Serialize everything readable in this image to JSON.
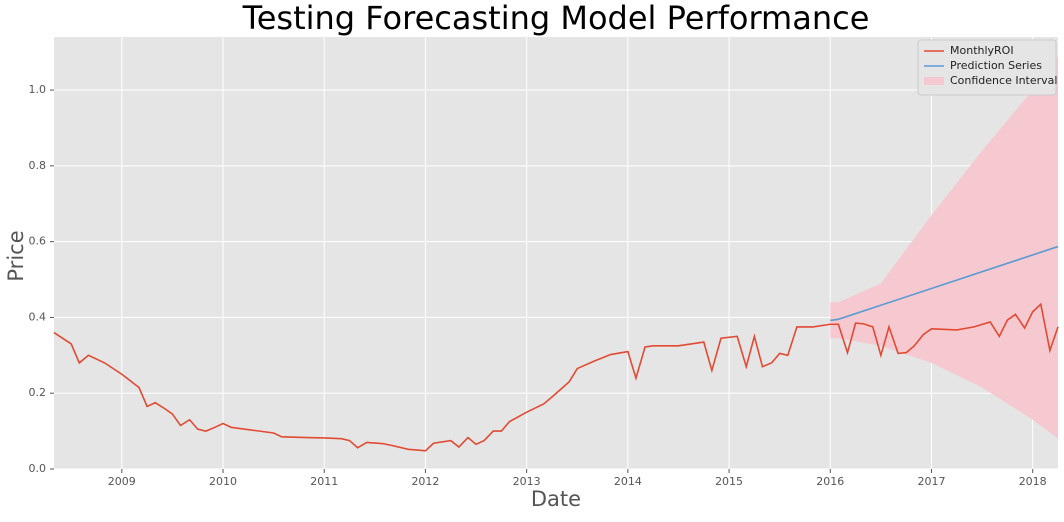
{
  "chart_data": {
    "type": "line",
    "title": "Testing Forecasting Model Performance",
    "x_label": "Date",
    "y_label": "Price",
    "xlim": [
      2008.33,
      2018.25
    ],
    "xticks": [
      2009,
      2010,
      2011,
      2012,
      2013,
      2014,
      2015,
      2016,
      2017,
      2018
    ],
    "ylim": [
      0,
      1.14
    ],
    "yticks": [
      {
        "value": 0,
        "label": "0.0"
      },
      0.2,
      0.4,
      0.6,
      0.8,
      {
        "value": 1,
        "label": "1.0"
      }
    ],
    "grid": true,
    "legend": "upper right",
    "series": [
      {
        "name": "MonthlyROI",
        "color": "#e24a33",
        "kind": "line",
        "x": [
          2008.33,
          2008.5,
          2008.58,
          2008.67,
          2008.83,
          2009.0,
          2009.17,
          2009.25,
          2009.33,
          2009.42,
          2009.5,
          2009.58,
          2009.67,
          2009.75,
          2009.83,
          2009.92,
          2010.0,
          2010.08,
          2010.5,
          2010.58,
          2010.83,
          2011.0,
          2011.17,
          2011.25,
          2011.33,
          2011.42,
          2011.58,
          2011.67,
          2011.83,
          2011.92,
          2012.0,
          2012.08,
          2012.25,
          2012.33,
          2012.42,
          2012.5,
          2012.58,
          2012.67,
          2012.75,
          2012.83,
          2013.0,
          2013.17,
          2013.25,
          2013.42,
          2013.5,
          2013.67,
          2013.83,
          2014.0,
          2014.08,
          2014.17,
          2014.25,
          2014.5,
          2014.75,
          2014.83,
          2014.92,
          2015.08,
          2015.17,
          2015.25,
          2015.33,
          2015.42,
          2015.5,
          2015.58,
          2015.67,
          2015.83,
          2016.0,
          2016.08,
          2016.17,
          2016.25,
          2016.33,
          2016.42,
          2016.5,
          2016.58,
          2016.67,
          2016.75,
          2016.83,
          2016.92,
          2017.0,
          2017.25,
          2017.42,
          2017.58,
          2017.67,
          2017.75,
          2017.83,
          2017.92,
          2018.0,
          2018.08,
          2018.17,
          2018.25
        ],
        "values": [
          0.36,
          0.33,
          0.28,
          0.3,
          0.28,
          0.25,
          0.215,
          0.165,
          0.175,
          0.16,
          0.145,
          0.115,
          0.13,
          0.105,
          0.1,
          0.11,
          0.12,
          0.11,
          0.095,
          0.085,
          0.083,
          0.082,
          0.08,
          0.075,
          0.056,
          0.07,
          0.067,
          0.062,
          0.052,
          0.05,
          0.048,
          0.068,
          0.075,
          0.058,
          0.083,
          0.065,
          0.075,
          0.1,
          0.1,
          0.125,
          0.15,
          0.172,
          0.19,
          0.23,
          0.265,
          0.285,
          0.302,
          0.31,
          0.24,
          0.322,
          0.325,
          0.325,
          0.335,
          0.26,
          0.345,
          0.35,
          0.27,
          0.35,
          0.27,
          0.28,
          0.305,
          0.3,
          0.375,
          0.375,
          0.382,
          0.382,
          0.307,
          0.385,
          0.383,
          0.375,
          0.3,
          0.375,
          0.305,
          0.307,
          0.325,
          0.355,
          0.37,
          0.367,
          0.375,
          0.388,
          0.35,
          0.393,
          0.408,
          0.372,
          0.415,
          0.435,
          0.313,
          0.375
        ]
      },
      {
        "name": "Prediction Series",
        "color": "#5b9bd5",
        "kind": "line",
        "x": [
          2016.0,
          2016.08,
          2018.25
        ],
        "values": [
          0.392,
          0.395,
          0.587
        ]
      },
      {
        "name": "Confidence Interval",
        "color": "#f5c9cf",
        "kind": "band",
        "x": [
          2016.0,
          2016.08,
          2016.5,
          2017.0,
          2017.5,
          2018.0,
          2018.25
        ],
        "lower": [
          0.345,
          0.345,
          0.325,
          0.28,
          0.215,
          0.13,
          0.08
        ],
        "upper": [
          0.44,
          0.44,
          0.49,
          0.67,
          0.84,
          1.0,
          1.09
        ]
      }
    ]
  }
}
